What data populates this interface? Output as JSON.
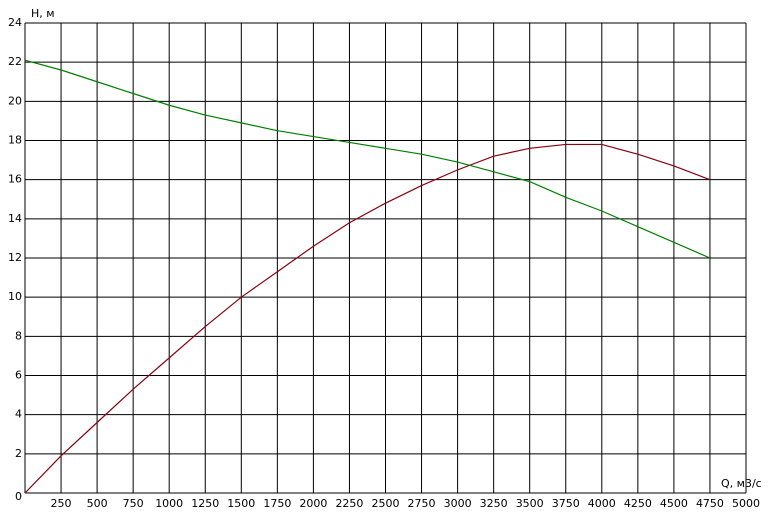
{
  "chart_data": {
    "type": "line",
    "x_label": "Q, м3/с",
    "y_label": "H, м",
    "x": [
      0,
      250,
      500,
      750,
      1000,
      1250,
      1500,
      1750,
      2000,
      2250,
      2500,
      2750,
      3000,
      3250,
      3500,
      3750,
      4000,
      4250,
      4500,
      4750
    ],
    "series": [
      {
        "color": "#8b0010",
        "values": [
          0,
          1.9,
          3.6,
          5.3,
          6.9,
          8.5,
          10,
          11.3,
          12.6,
          13.8,
          14.8,
          15.7,
          16.5,
          17.2,
          17.6,
          17.8,
          17.8,
          17.3,
          16.7,
          16.0
        ]
      },
      {
        "color": "#008000",
        "values": [
          22.1,
          21.6,
          21.0,
          20.4,
          19.8,
          19.3,
          18.9,
          18.5,
          18.2,
          17.9,
          17.6,
          17.3,
          16.9,
          16.4,
          15.9,
          15.1,
          14.4,
          13.6,
          12.8,
          12.0
        ]
      }
    ],
    "xlim": [
      0,
      5000
    ],
    "ylim": [
      0,
      24
    ],
    "xticks": [
      250,
      500,
      750,
      1000,
      1250,
      1500,
      1750,
      2000,
      2250,
      2500,
      2750,
      3000,
      3250,
      3500,
      3750,
      4000,
      4250,
      4500,
      4750,
      5000
    ],
    "yticks": [
      0,
      2,
      4,
      6,
      8,
      10,
      12,
      14,
      16,
      18,
      20,
      22,
      24
    ],
    "grid": true
  }
}
